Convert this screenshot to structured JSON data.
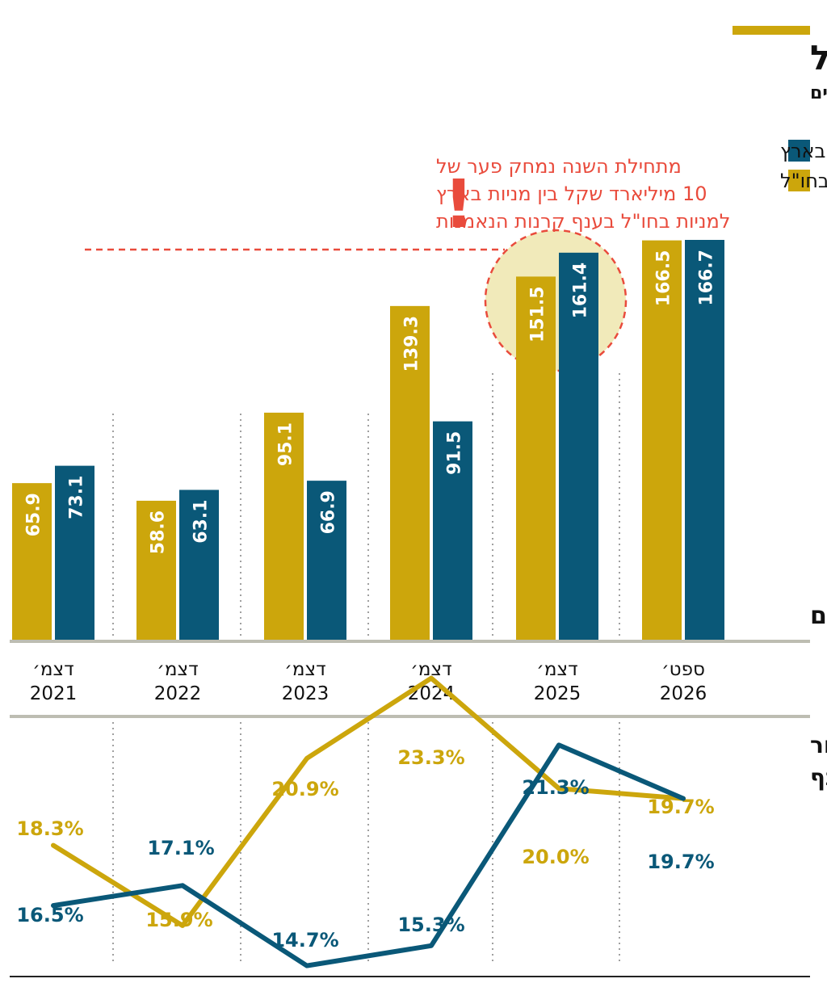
{
  "title": "המשקיעים מקטינים חשיפה לישראל",
  "subtitle": "היקף נכסים בענף קרנות הנאמנות, במיליארדי שקלים",
  "colors": {
    "domestic": "#0a5878",
    "foreign": "#cca60c",
    "alert": "#e94b3c",
    "highlight": "#f1eaba",
    "rule": "#bdbdb2",
    "text": "#111111"
  },
  "legend": [
    {
      "label": "מניות בארץ",
      "color": "#0a5878"
    },
    {
      "label": "מניות בחו\"ל",
      "color": "#cca60c"
    }
  ],
  "annotation": {
    "lines": [
      "מתחילת השנה נמחק פער של",
      "10 מיליארד שקל בין מניות בארץ",
      "למניות בחו\"ל בענף קרנות הנאמנות"
    ],
    "mark": "!"
  },
  "bars_label": "נכסים",
  "line_label": [
    "שיעור",
    "מהענף"
  ],
  "chart_data": [
    {
      "type": "bar",
      "categories": [
        [
          "דצמ׳",
          "2021"
        ],
        [
          "דצמ׳",
          "2022"
        ],
        [
          "דצמ׳",
          "2023"
        ],
        [
          "דצמ׳",
          "2024"
        ],
        [
          "דצמ׳",
          "2025"
        ],
        [
          "ספט׳",
          "2026"
        ]
      ],
      "series": [
        {
          "name": "מניות בחו\"ל",
          "key": "foreign",
          "values": [
            65.9,
            58.6,
            95.1,
            139.3,
            151.5,
            166.5
          ],
          "labels": [
            "65.9",
            "58.6",
            "95.1",
            "139.3",
            "151.5",
            "166.5"
          ]
        },
        {
          "name": "מניות בארץ",
          "key": "domestic",
          "values": [
            73.1,
            63.1,
            66.9,
            91.5,
            161.4,
            166.7
          ],
          "labels": [
            "73.1",
            "63.1",
            "66.9",
            "91.5",
            "161.4",
            "166.7"
          ]
        }
      ],
      "ylim": [
        0,
        166.7
      ]
    },
    {
      "type": "line",
      "categories": [
        [
          "דצמ׳",
          "2021"
        ],
        [
          "דצמ׳",
          "2022"
        ],
        [
          "דצמ׳",
          "2023"
        ],
        [
          "דצמ׳",
          "2024"
        ],
        [
          "דצמ׳",
          "2025"
        ],
        [
          "ספט׳",
          "2026"
        ]
      ],
      "series": [
        {
          "name": "מניות בחו\"ל",
          "key": "foreign",
          "values": [
            18.3,
            15.9,
            20.9,
            23.3,
            20.0,
            19.7
          ],
          "labels": [
            "18.3%",
            "15.9%",
            "20.9%",
            "23.3%",
            "20.0%",
            "19.7%"
          ]
        },
        {
          "name": "מניות בארץ",
          "key": "domestic",
          "values": [
            16.5,
            17.1,
            14.7,
            15.3,
            21.3,
            19.7
          ],
          "labels": [
            "16.5%",
            "17.1%",
            "14.7%",
            "15.3%",
            "21.3%",
            "19.7%"
          ]
        }
      ]
    }
  ]
}
